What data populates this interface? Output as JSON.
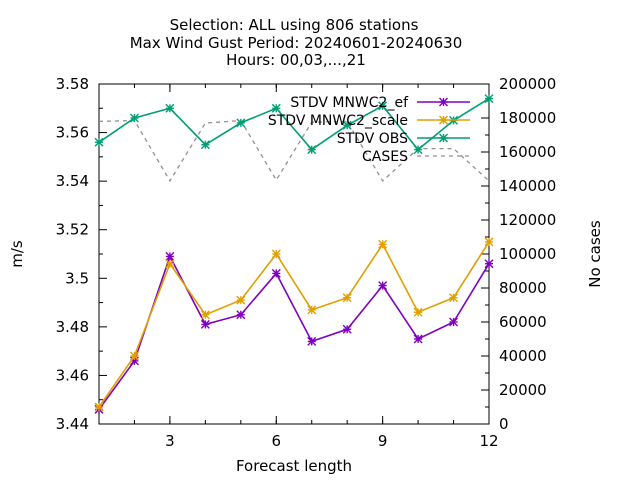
{
  "chart_data": {
    "type": "line",
    "title_lines": [
      "Selection: ALL using   806 stations",
      "Max Wind Gust   Period: 20240601-20240630",
      "Hours: 00,03,...,21"
    ],
    "xlabel": "Forecast length",
    "ylabel": "m/s",
    "y2label": "No cases",
    "x": [
      1,
      2,
      3,
      4,
      5,
      6,
      7,
      8,
      9,
      10,
      11,
      12
    ],
    "xlim": [
      1,
      12
    ],
    "xticks": [
      "3",
      "6",
      "9",
      "12"
    ],
    "ylim": [
      3.44,
      3.58
    ],
    "yticks": [
      "3.44",
      "3.46",
      "3.48",
      "3.5",
      "3.52",
      "3.54",
      "3.56",
      "3.58"
    ],
    "y2lim": [
      0,
      200000
    ],
    "y2ticks": [
      "0",
      "20000",
      "40000",
      "60000",
      "80000",
      "100000",
      "120000",
      "140000",
      "160000",
      "180000",
      "200000"
    ],
    "grid": false,
    "legend_position": "top-right",
    "series": [
      {
        "name": "STDV MNWC2_ef",
        "axis": "y",
        "color": "#8000c0",
        "marker": "star",
        "values": [
          3.446,
          3.466,
          3.509,
          3.481,
          3.485,
          3.502,
          3.474,
          3.479,
          3.497,
          3.475,
          3.482,
          3.506
        ]
      },
      {
        "name": "STDV MNWC2_scale",
        "axis": "y",
        "color": "#e0a000",
        "marker": "star",
        "values": [
          3.447,
          3.468,
          3.506,
          3.485,
          3.491,
          3.51,
          3.487,
          3.492,
          3.514,
          3.486,
          3.492,
          3.515
        ]
      },
      {
        "name": "STDV OBS",
        "axis": "y",
        "color": "#009e73",
        "marker": "star",
        "values": [
          3.556,
          3.566,
          3.57,
          3.555,
          3.564,
          3.57,
          3.553,
          3.563,
          3.571,
          3.553,
          3.565,
          3.574
        ]
      },
      {
        "name": "CASES",
        "axis": "y2",
        "color": "#909090",
        "marker": "none",
        "dashed": true,
        "values": [
          178000,
          178500,
          143000,
          177000,
          178500,
          143500,
          177500,
          178000,
          143000,
          162000,
          162000,
          143000
        ]
      }
    ]
  }
}
